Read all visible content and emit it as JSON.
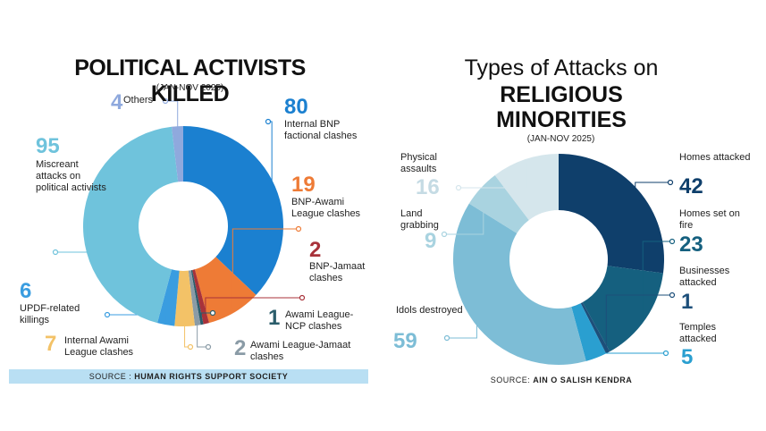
{
  "chart_data": [
    {
      "type": "donut",
      "title": "POLITICAL ACTIVISTS KILLED",
      "subtitle": "(JAN-NOV 2025)",
      "source_label": "SOURCE :",
      "source": "HUMAN RIGHTS SUPPORT SOCIETY",
      "categories": [
        "Internal BNP factional clashes",
        "BNP-Awami League clashes",
        "BNP-Jamaat clashes",
        "Awami League-NCP clashes",
        "Awami League-Jamaat clashes",
        "Internal Awami League clashes",
        "UPDF-related killings",
        "Miscreant attacks on political activists",
        "Others"
      ],
      "values": [
        80,
        19,
        2,
        1,
        2,
        7,
        6,
        95,
        4
      ],
      "colors": [
        "#1b80d0",
        "#ee7b36",
        "#a8323a",
        "#2b5d6b",
        "#8a9ba6",
        "#f3c267",
        "#3a9de0",
        "#6fc3dc",
        "#8fa9dd"
      ]
    },
    {
      "type": "donut",
      "title": "Types of Attacks on",
      "title_emphasis": "RELIGIOUS MINORITIES",
      "subtitle": "(JAN-NOV 2025)",
      "source_label": "SOURCE:",
      "source": "AIN O SALISH KENDRA",
      "categories": [
        "Homes attacked",
        "Homes set on fire",
        "Businesses attacked",
        "Temples attacked",
        "Idols destroyed",
        "Land grabbing",
        "Physical assaults"
      ],
      "values": [
        42,
        23,
        1,
        5,
        59,
        9,
        16
      ],
      "colors": [
        "#0f3f6b",
        "#15607f",
        "#1d4f7a",
        "#2a9fd0",
        "#7dbdd6",
        "#a9d3e0",
        "#d5e6ec"
      ]
    }
  ]
}
